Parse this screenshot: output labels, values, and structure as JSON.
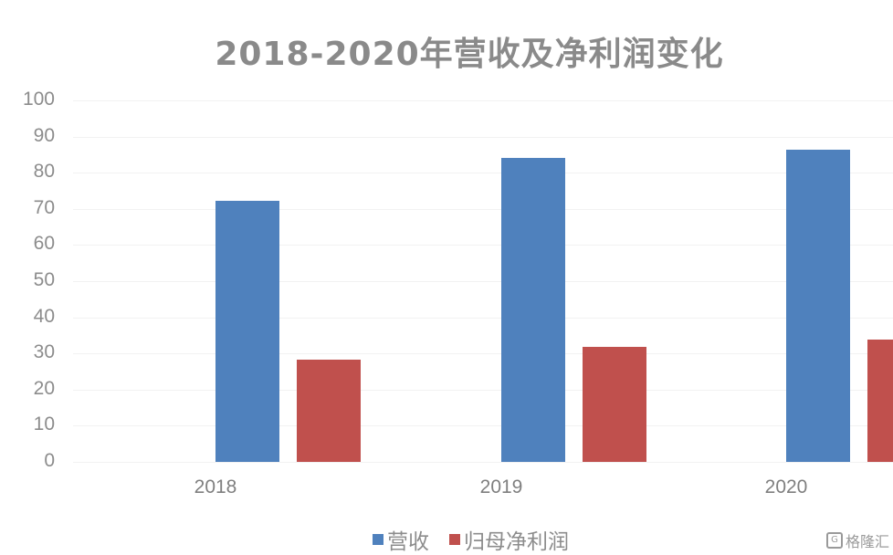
{
  "chart_data": {
    "type": "bar",
    "title": "2018-2020年营收及净利润变化",
    "categories": [
      "2018",
      "2019",
      "2020"
    ],
    "series": [
      {
        "name": "营收",
        "color": "#4f81bd",
        "values": [
          72.2,
          84.1,
          86.4
        ]
      },
      {
        "name": "归母净利润",
        "color": "#c0504d",
        "values": [
          28.3,
          31.8,
          33.8
        ]
      }
    ],
    "xlabel": "",
    "ylabel": "",
    "ylim": [
      0,
      100
    ],
    "yticks": [
      "0",
      "10",
      "20",
      "30",
      "40",
      "50",
      "60",
      "70",
      "80",
      "90",
      "100"
    ],
    "grid": true,
    "legend_position": "bottom"
  },
  "watermark": {
    "text": "格隆汇",
    "icon": "G"
  }
}
